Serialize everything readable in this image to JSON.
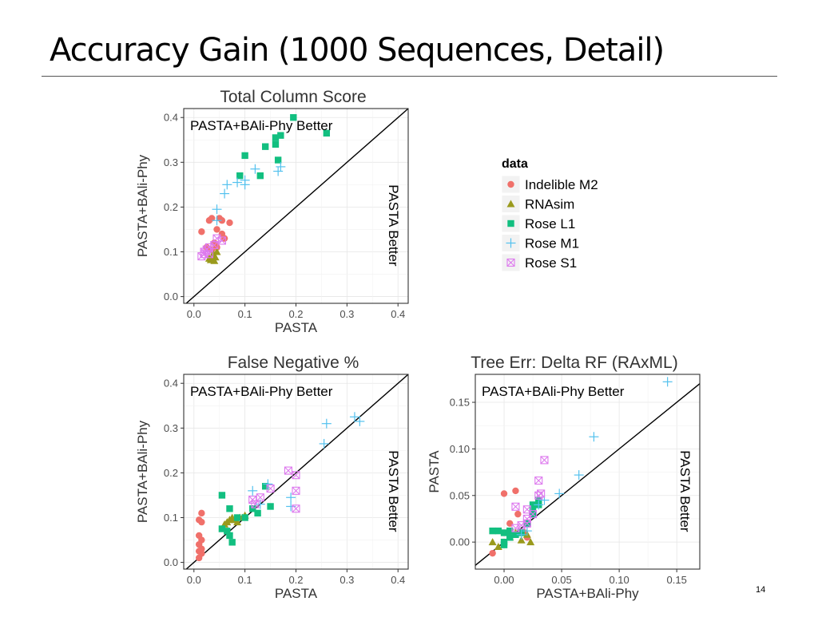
{
  "slide": {
    "title": "Accuracy Gain (1000 Sequences, Detail)",
    "page_number": "14"
  },
  "colors": {
    "Indelible M2": "#F0706A",
    "RNAsim": "#9A9A1C",
    "Rose L1": "#12BF80",
    "Rose M1": "#53C1EE",
    "Rose S1": "#DD79EE"
  },
  "legend": {
    "title": "data",
    "entries": [
      {
        "name": "Indelible M2",
        "icon": "circle-icon"
      },
      {
        "name": "RNAsim",
        "icon": "triangle-icon"
      },
      {
        "name": "Rose L1",
        "icon": "square-icon"
      },
      {
        "name": "Rose M1",
        "icon": "plus-icon"
      },
      {
        "name": "Rose S1",
        "icon": "boxed-x-icon"
      }
    ]
  },
  "chart_data": [
    {
      "type": "scatter",
      "title": "Total Column Score",
      "xlabel": "PASTA",
      "ylabel": "PASTA+BAli-Phy",
      "xlim": [
        -0.02,
        0.42
      ],
      "ylim": [
        -0.015,
        0.42
      ],
      "xticks": [
        0.0,
        0.1,
        0.2,
        0.3,
        0.4
      ],
      "xtick_labels": [
        "0.0",
        "0.1",
        "0.2",
        "0.3",
        "0.4"
      ],
      "yticks": [
        0.0,
        0.1,
        0.2,
        0.3,
        0.4
      ],
      "ytick_labels": [
        "0.0",
        "0.1",
        "0.2",
        "0.3",
        "0.4"
      ],
      "annotations": {
        "upper": "PASTA+BAli-Phy Better",
        "lower": "PASTA Better"
      },
      "diagonal": true,
      "series": [
        {
          "name": "Indelible M2",
          "points": [
            [
              0.015,
              0.145
            ],
            [
              0.03,
              0.17
            ],
            [
              0.035,
              0.175
            ],
            [
              0.05,
              0.175
            ],
            [
              0.055,
              0.17
            ],
            [
              0.07,
              0.165
            ],
            [
              0.045,
              0.15
            ],
            [
              0.055,
              0.14
            ],
            [
              0.06,
              0.13
            ],
            [
              0.04,
              0.12
            ],
            [
              0.025,
              0.11
            ],
            [
              0.035,
              0.105
            ],
            [
              0.045,
              0.11
            ]
          ]
        },
        {
          "name": "RNAsim",
          "points": [
            [
              0.03,
              0.085
            ],
            [
              0.035,
              0.09
            ],
            [
              0.04,
              0.08
            ],
            [
              0.045,
              0.1
            ],
            [
              0.038,
              0.095
            ],
            [
              0.042,
              0.088
            ],
            [
              0.033,
              0.082
            ]
          ]
        },
        {
          "name": "Rose L1",
          "points": [
            [
              0.195,
              0.4
            ],
            [
              0.26,
              0.365
            ],
            [
              0.17,
              0.36
            ],
            [
              0.16,
              0.355
            ],
            [
              0.16,
              0.34
            ],
            [
              0.14,
              0.335
            ],
            [
              0.1,
              0.315
            ],
            [
              0.165,
              0.305
            ],
            [
              0.09,
              0.27
            ],
            [
              0.13,
              0.27
            ]
          ]
        },
        {
          "name": "Rose M1",
          "points": [
            [
              0.045,
              0.195
            ],
            [
              0.045,
              0.17
            ],
            [
              0.06,
              0.23
            ],
            [
              0.065,
              0.25
            ],
            [
              0.085,
              0.255
            ],
            [
              0.1,
              0.25
            ],
            [
              0.1,
              0.26
            ],
            [
              0.12,
              0.285
            ],
            [
              0.165,
              0.28
            ],
            [
              0.17,
              0.29
            ]
          ]
        },
        {
          "name": "Rose S1",
          "points": [
            [
              0.015,
              0.09
            ],
            [
              0.02,
              0.1
            ],
            [
              0.025,
              0.105
            ],
            [
              0.03,
              0.11
            ],
            [
              0.04,
              0.115
            ],
            [
              0.045,
              0.13
            ],
            [
              0.055,
              0.125
            ],
            [
              0.03,
              0.095
            ],
            [
              0.02,
              0.095
            ]
          ]
        }
      ]
    },
    {
      "type": "scatter",
      "title": "False Negative %",
      "xlabel": "PASTA",
      "ylabel": "PASTA+BAli-Phy",
      "xlim": [
        -0.02,
        0.42
      ],
      "ylim": [
        -0.015,
        0.42
      ],
      "xticks": [
        0.0,
        0.1,
        0.2,
        0.3,
        0.4
      ],
      "xtick_labels": [
        "0.0",
        "0.1",
        "0.2",
        "0.3",
        "0.4"
      ],
      "yticks": [
        0.0,
        0.1,
        0.2,
        0.3,
        0.4
      ],
      "ytick_labels": [
        "0.0",
        "0.1",
        "0.2",
        "0.3",
        "0.4"
      ],
      "annotations": {
        "upper": "PASTA+BAli-Phy Better",
        "lower": "PASTA Better"
      },
      "diagonal": true,
      "series": [
        {
          "name": "Indelible M2",
          "points": [
            [
              0.015,
              0.11
            ],
            [
              0.01,
              0.095
            ],
            [
              0.015,
              0.09
            ],
            [
              0.01,
              0.06
            ],
            [
              0.015,
              0.05
            ],
            [
              0.01,
              0.04
            ],
            [
              0.015,
              0.03
            ],
            [
              0.01,
              0.025
            ],
            [
              0.015,
              0.02
            ],
            [
              0.01,
              0.01
            ]
          ]
        },
        {
          "name": "RNAsim",
          "points": [
            [
              0.06,
              0.085
            ],
            [
              0.065,
              0.09
            ],
            [
              0.07,
              0.095
            ],
            [
              0.075,
              0.1
            ],
            [
              0.08,
              0.095
            ],
            [
              0.09,
              0.1
            ],
            [
              0.095,
              0.1
            ],
            [
              0.1,
              0.105
            ],
            [
              0.085,
              0.09
            ]
          ]
        },
        {
          "name": "Rose L1",
          "points": [
            [
              0.055,
              0.15
            ],
            [
              0.055,
              0.075
            ],
            [
              0.065,
              0.07
            ],
            [
              0.07,
              0.06
            ],
            [
              0.075,
              0.045
            ],
            [
              0.07,
              0.12
            ],
            [
              0.085,
              0.1
            ],
            [
              0.1,
              0.1
            ],
            [
              0.115,
              0.12
            ],
            [
              0.125,
              0.11
            ],
            [
              0.15,
              0.125
            ],
            [
              0.14,
              0.17
            ]
          ]
        },
        {
          "name": "Rose M1",
          "points": [
            [
              0.26,
              0.31
            ],
            [
              0.315,
              0.325
            ],
            [
              0.325,
              0.315
            ],
            [
              0.255,
              0.265
            ],
            [
              0.145,
              0.175
            ],
            [
              0.115,
              0.16
            ],
            [
              0.19,
              0.125
            ],
            [
              0.19,
              0.145
            ],
            [
              0.13,
              0.13
            ]
          ]
        },
        {
          "name": "Rose S1",
          "points": [
            [
              0.185,
              0.205
            ],
            [
              0.2,
              0.195
            ],
            [
              0.2,
              0.16
            ],
            [
              0.2,
              0.12
            ],
            [
              0.15,
              0.165
            ],
            [
              0.115,
              0.14
            ],
            [
              0.12,
              0.13
            ],
            [
              0.13,
              0.145
            ]
          ]
        }
      ]
    },
    {
      "type": "scatter",
      "title": "Tree Err: Delta RF (RAxML)",
      "xlabel": "PASTA+BAli-Phy",
      "ylabel": "PASTA",
      "xlim": [
        -0.025,
        0.17
      ],
      "ylim": [
        -0.029,
        0.18
      ],
      "xticks": [
        0.0,
        0.05,
        0.1,
        0.15
      ],
      "xtick_labels": [
        "0.00",
        "0.05",
        "0.10",
        "0.15"
      ],
      "yticks": [
        0.0,
        0.05,
        0.1,
        0.15
      ],
      "ytick_labels": [
        "0.00",
        "0.05",
        "0.10",
        "0.15"
      ],
      "annotations": {
        "upper": "PASTA+BAli-Phy Better",
        "lower": "PASTA Better"
      },
      "diagonal": true,
      "series": [
        {
          "name": "Indelible M2",
          "points": [
            [
              0.0,
              0.052
            ],
            [
              0.01,
              0.055
            ],
            [
              0.012,
              0.03
            ],
            [
              0.005,
              0.02
            ],
            [
              0.003,
              0.01
            ],
            [
              -0.01,
              -0.012
            ],
            [
              0.018,
              0.01
            ],
            [
              0.02,
              0.005
            ]
          ]
        },
        {
          "name": "RNAsim",
          "points": [
            [
              -0.01,
              0.0
            ],
            [
              -0.005,
              -0.005
            ],
            [
              0.005,
              0.005
            ],
            [
              0.01,
              0.01
            ],
            [
              0.02,
              0.008
            ],
            [
              0.023,
              0.0
            ],
            [
              0.015,
              0.002
            ]
          ]
        },
        {
          "name": "Rose L1",
          "points": [
            [
              -0.01,
              0.012
            ],
            [
              -0.005,
              0.012
            ],
            [
              0.0,
              0.01
            ],
            [
              0.005,
              0.012
            ],
            [
              0.0,
              0.0
            ],
            [
              0.005,
              0.005
            ],
            [
              0.01,
              0.008
            ],
            [
              0.015,
              0.01
            ],
            [
              0.02,
              0.02
            ],
            [
              0.025,
              0.03
            ],
            [
              0.025,
              0.04
            ],
            [
              0.03,
              0.04
            ],
            [
              0.03,
              0.045
            ],
            [
              0.025,
              0.035
            ],
            [
              0.0,
              -0.003
            ]
          ]
        },
        {
          "name": "Rose M1",
          "points": [
            [
              0.142,
              0.172
            ],
            [
              0.078,
              0.113
            ],
            [
              0.065,
              0.072
            ],
            [
              0.048,
              0.052
            ],
            [
              0.035,
              0.045
            ],
            [
              0.03,
              0.04
            ],
            [
              0.02,
              0.012
            ],
            [
              0.015,
              0.008
            ]
          ]
        },
        {
          "name": "Rose S1",
          "points": [
            [
              0.035,
              0.088
            ],
            [
              0.03,
              0.066
            ],
            [
              0.032,
              0.052
            ],
            [
              0.03,
              0.05
            ],
            [
              0.01,
              0.038
            ],
            [
              0.02,
              0.035
            ],
            [
              0.025,
              0.03
            ],
            [
              0.02,
              0.02
            ],
            [
              0.015,
              0.018
            ],
            [
              0.01,
              0.015
            ],
            [
              0.02,
              0.025
            ]
          ]
        }
      ]
    }
  ]
}
